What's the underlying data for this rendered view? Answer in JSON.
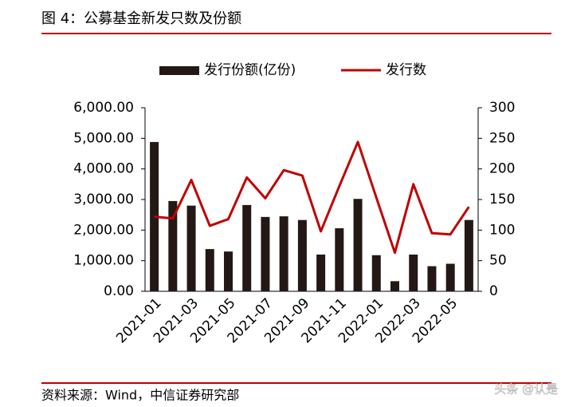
{
  "title": "图 4：公募基金新发只数及份额",
  "source": "资料来源：Wind，中信证券研究部",
  "watermark": "头条 @认是",
  "chart_data": {
    "type": "bar",
    "categories": [
      "2021-01",
      null,
      "2021-03",
      null,
      "2021-05",
      null,
      "2021-07",
      null,
      "2021-09",
      null,
      "2021-11",
      null,
      "2022-01",
      null,
      "2022-03",
      null,
      "2022-05",
      null
    ],
    "series": [
      {
        "name": "发行份额(亿份)",
        "type": "bar",
        "axis": "y",
        "color": "#231815",
        "values": [
          4880,
          2950,
          2800,
          1380,
          1300,
          2820,
          2430,
          2450,
          2330,
          1200,
          2060,
          3020,
          1180,
          330,
          1200,
          820,
          900,
          2330
        ]
      },
      {
        "name": "发行数",
        "type": "line",
        "axis": "y2",
        "color": "#c00000",
        "values": [
          122,
          119,
          182,
          107,
          118,
          186,
          152,
          198,
          189,
          98,
          172,
          244,
          153,
          63,
          175,
          95,
          93,
          138
        ]
      }
    ],
    "ylim": [
      0,
      6000
    ],
    "yticks": [
      {
        "value": 0,
        "label": "0.00"
      },
      {
        "value": 1000,
        "label": "1,000.00"
      },
      {
        "value": 2000,
        "label": "2,000.00"
      },
      {
        "value": 3000,
        "label": "3,000.00"
      },
      {
        "value": 4000,
        "label": "4,000.00"
      },
      {
        "value": 5000,
        "label": "5,000.00"
      },
      {
        "value": 6000,
        "label": "6,000.00"
      }
    ],
    "y2lim": [
      0,
      300
    ],
    "y2ticks": [
      0,
      50,
      100,
      150,
      200,
      250,
      300
    ],
    "grid": false
  }
}
